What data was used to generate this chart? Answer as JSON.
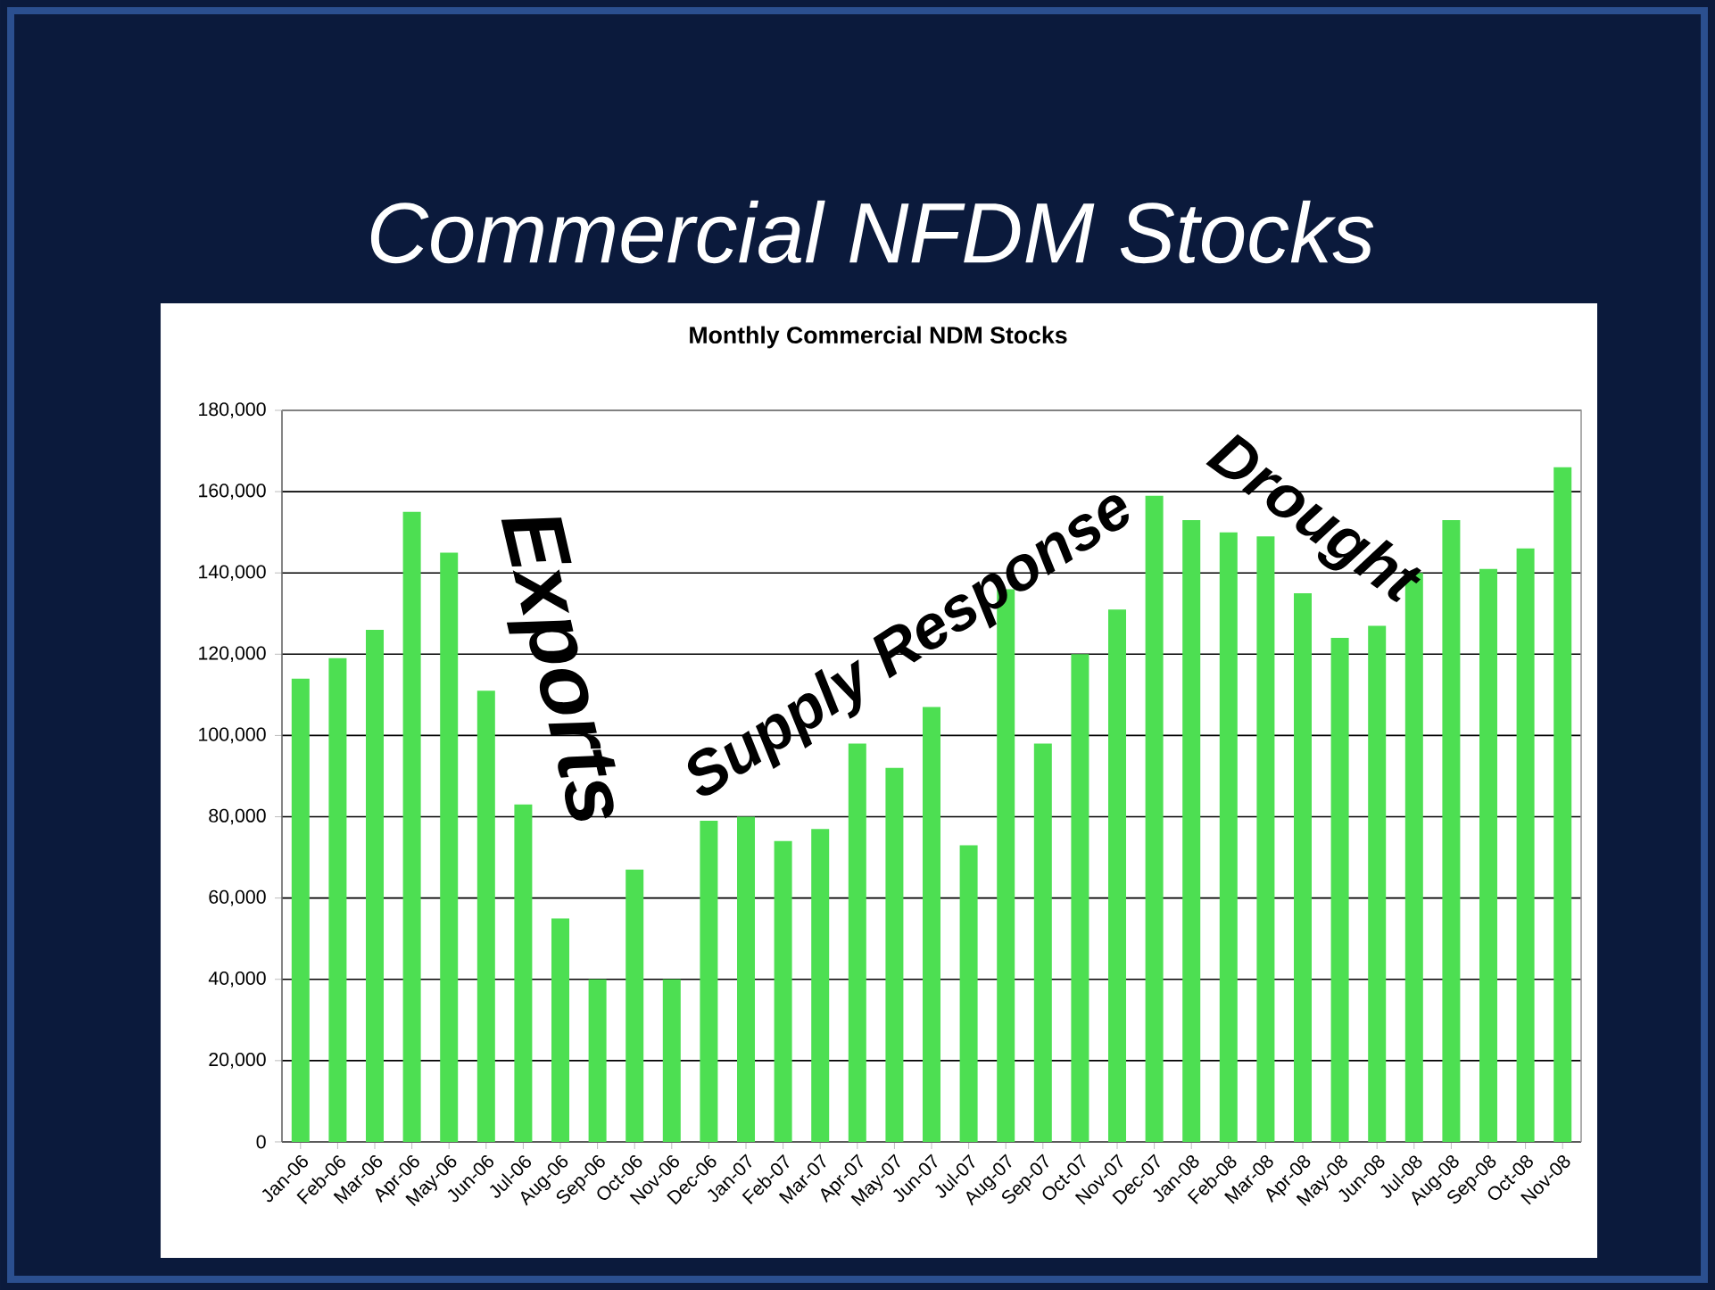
{
  "chart_data": {
    "type": "bar",
    "title": "Commercial NFDM Stocks",
    "subtitle": "Monthly Commercial NDM Stocks",
    "categories": [
      "Jan-06",
      "Feb-06",
      "Mar-06",
      "Apr-06",
      "May-06",
      "Jun-06",
      "Jul-06",
      "Aug-06",
      "Sep-06",
      "Oct-06",
      "Nov-06",
      "Dec-06",
      "Jan-07",
      "Feb-07",
      "Mar-07",
      "Apr-07",
      "May-07",
      "Jun-07",
      "Jul-07",
      "Aug-07",
      "Sep-07",
      "Oct-07",
      "Nov-07",
      "Dec-07",
      "Jan-08",
      "Feb-08",
      "Mar-08",
      "Apr-08",
      "May-08",
      "Jun-08",
      "Jul-08",
      "Aug-08",
      "Sep-08",
      "Oct-08",
      "Nov-08"
    ],
    "values": [
      114000,
      119000,
      126000,
      155000,
      145000,
      111000,
      83000,
      55000,
      40000,
      67000,
      40000,
      79000,
      80000,
      74000,
      77000,
      98000,
      92000,
      107000,
      73000,
      136000,
      98000,
      120000,
      131000,
      159000,
      153000,
      150000,
      149000,
      135000,
      124000,
      127000,
      140000,
      153000,
      141000,
      146000,
      166000
    ],
    "color": "#4ddf52",
    "ylim": [
      0,
      180000
    ],
    "yticks": [
      0,
      {
        "value": 20000,
        "label": "20,000"
      },
      {
        "value": 40000,
        "label": "40,000"
      },
      {
        "value": 60000,
        "label": "60,000"
      },
      {
        "value": 80000,
        "label": "80,000"
      },
      {
        "value": 100000,
        "label": "100,000"
      },
      {
        "value": 120000,
        "label": "120,000"
      },
      {
        "value": 140000,
        "label": "140,000"
      },
      {
        "value": 160000,
        "label": "160,000"
      },
      {
        "value": 180000,
        "label": "180,000"
      }
    ],
    "grid": "y",
    "annotations": [
      "Exports",
      "Supply Response",
      "Drought"
    ]
  }
}
